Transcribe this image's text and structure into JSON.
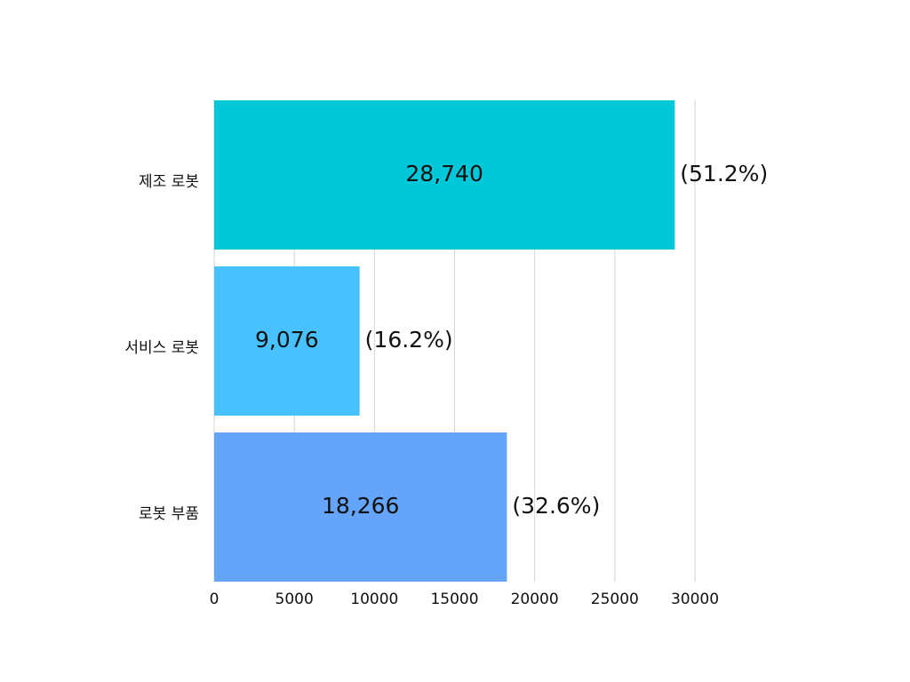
{
  "chart_data": {
    "type": "hbar",
    "categories": [
      "제조 로봇",
      "서비스 로봇",
      "로봇 부품"
    ],
    "values": [
      28740,
      9076,
      18266
    ],
    "value_labels": [
      "28,740",
      "9,076",
      "18,266"
    ],
    "percent_labels": [
      "(51.2%)",
      "(16.2%)",
      "(32.6%)"
    ],
    "colors": [
      "#00c8d8",
      "#48c2ff",
      "#64a5fa"
    ],
    "xlim": [
      0,
      30000
    ],
    "xticks": [
      0,
      5000,
      10000,
      15000,
      20000,
      25000,
      30000
    ],
    "grid": true
  }
}
